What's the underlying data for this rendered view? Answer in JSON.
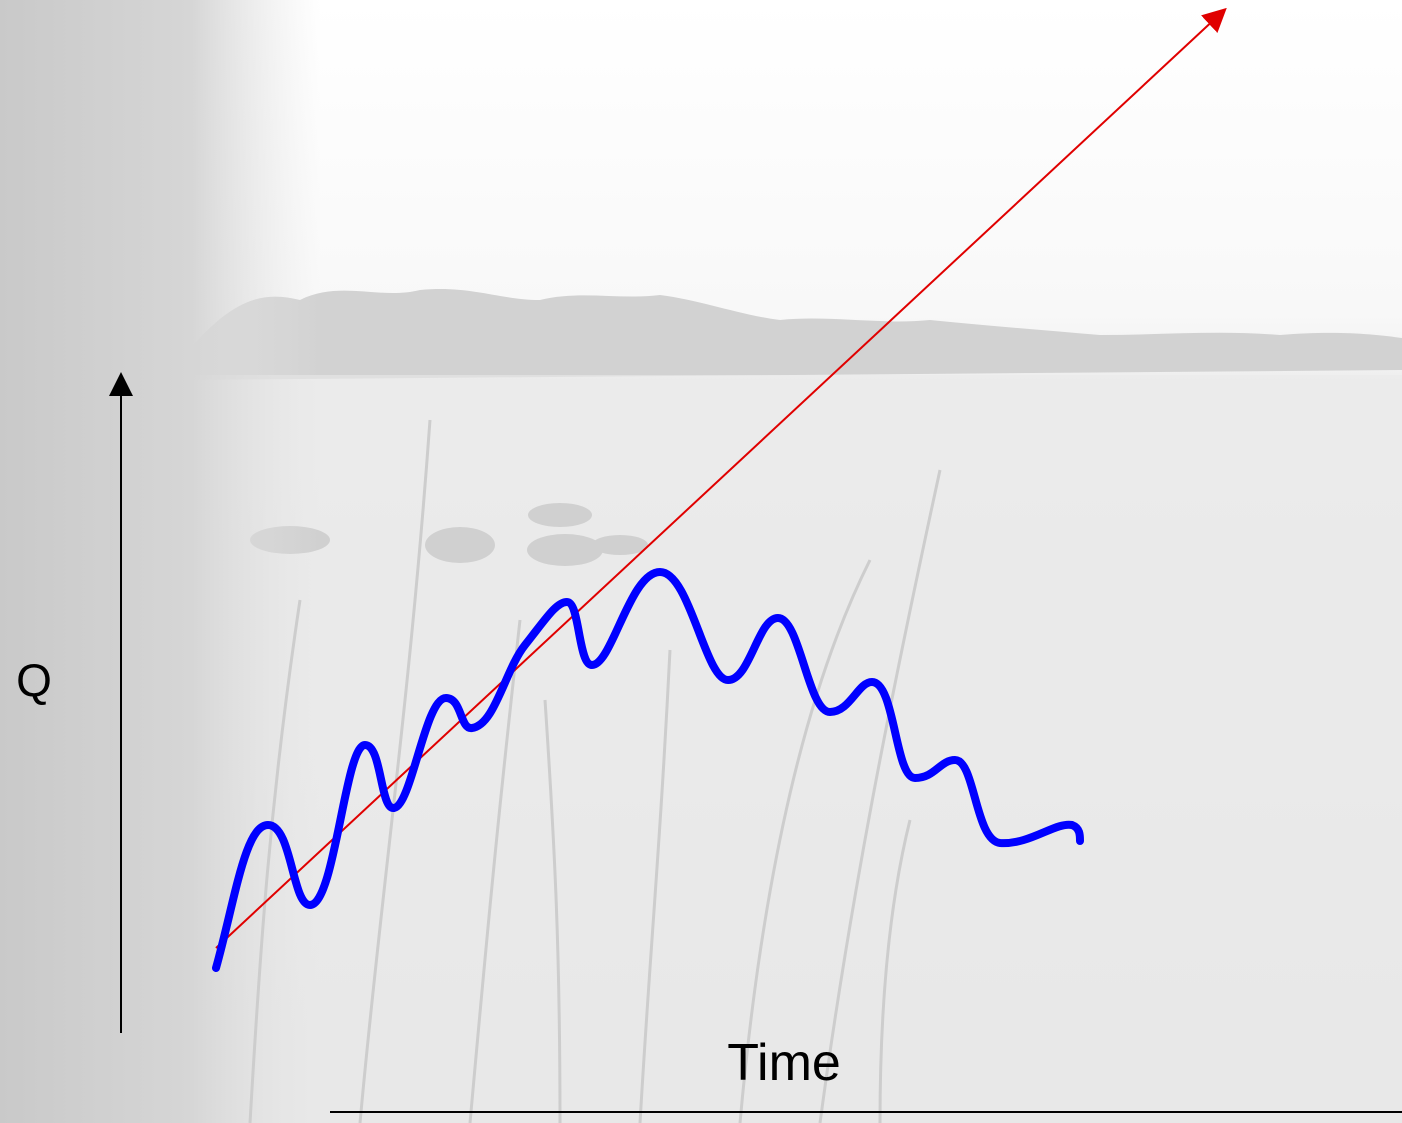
{
  "labels": {
    "y_axis": "Q",
    "x_axis": "Time"
  },
  "colors": {
    "axis": "#000000",
    "hydrograph": "#0000ff",
    "trend": "#e00000",
    "sky": "#ffffff",
    "water": "#e8e8e8",
    "vegetation": "#c4c4c4"
  }
}
